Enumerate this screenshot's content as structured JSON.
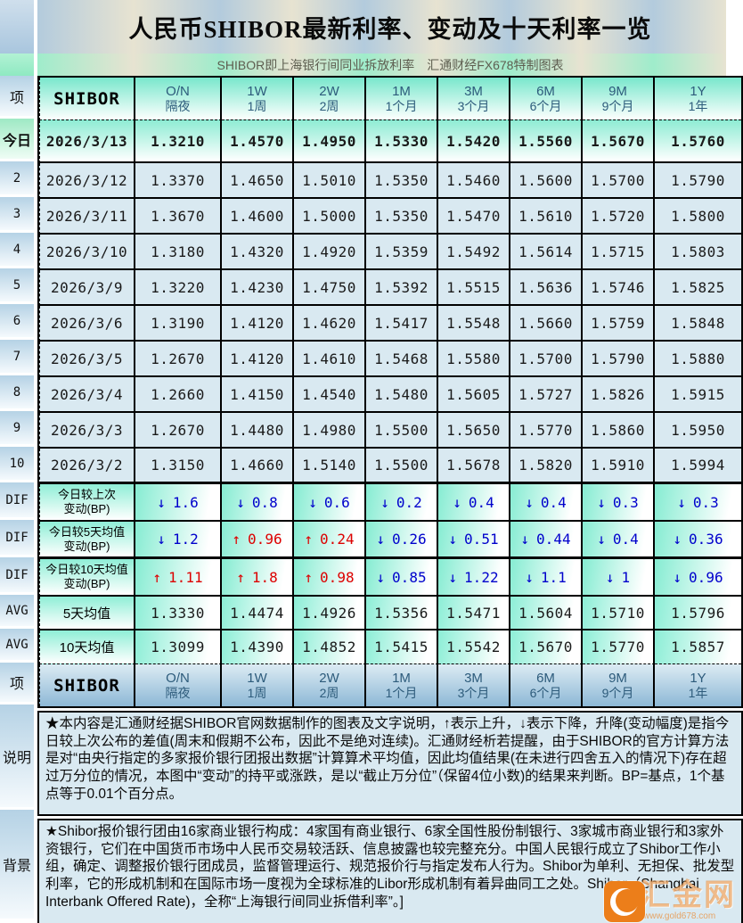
{
  "title": "人民币SHIBOR最新利率、变动及十天利率一览",
  "subtitle": "SHIBOR即上海银行间同业拆放利率　汇通财经FX678特制图表",
  "header": {
    "item_label": "项",
    "shibor_label": "SHIBOR",
    "tenors": [
      {
        "en": "O/N",
        "cn": "隔夜"
      },
      {
        "en": "1W",
        "cn": "1周"
      },
      {
        "en": "2W",
        "cn": "2周"
      },
      {
        "en": "1M",
        "cn": "1个月"
      },
      {
        "en": "3M",
        "cn": "3个月"
      },
      {
        "en": "6M",
        "cn": "6个月"
      },
      {
        "en": "9M",
        "cn": "9个月"
      },
      {
        "en": "1Y",
        "cn": "1年"
      }
    ]
  },
  "left_strip": [
    {
      "label": "项",
      "type": "hdr"
    },
    {
      "label": "今日",
      "type": "today"
    },
    {
      "label": "2",
      "type": "row"
    },
    {
      "label": "3",
      "type": "row"
    },
    {
      "label": "4",
      "type": "row"
    },
    {
      "label": "5",
      "type": "row"
    },
    {
      "label": "6",
      "type": "row"
    },
    {
      "label": "7",
      "type": "row"
    },
    {
      "label": "8",
      "type": "row"
    },
    {
      "label": "9",
      "type": "row"
    },
    {
      "label": "10",
      "type": "row"
    },
    {
      "label": "DIF",
      "type": "dif"
    },
    {
      "label": "DIF",
      "type": "dif"
    },
    {
      "label": "DIF",
      "type": "dif"
    },
    {
      "label": "AVG",
      "type": "avg"
    },
    {
      "label": "AVG",
      "type": "avg"
    },
    {
      "label": "项",
      "type": "hdr2"
    },
    {
      "label": "说明",
      "type": "note"
    },
    {
      "label": "背景",
      "type": "bg"
    }
  ],
  "chart_data": {
    "type": "table",
    "title": "人民币SHIBOR最新利率、变动及十天利率一览",
    "columns": [
      "SHIBOR",
      "O/N 隔夜",
      "1W 1周",
      "2W 2周",
      "1M 1个月",
      "3M 3个月",
      "6M 6个月",
      "9M 9个月",
      "1Y 1年"
    ],
    "rows": [
      {
        "label": "今日",
        "date": "2026/3/13",
        "values": [
          "1.3210",
          "1.4570",
          "1.4950",
          "1.5330",
          "1.5420",
          "1.5560",
          "1.5670",
          "1.5760"
        ]
      },
      {
        "label": "2",
        "date": "2026/3/12",
        "values": [
          "1.3370",
          "1.4650",
          "1.5010",
          "1.5350",
          "1.5460",
          "1.5600",
          "1.5700",
          "1.5790"
        ]
      },
      {
        "label": "3",
        "date": "2026/3/11",
        "values": [
          "1.3670",
          "1.4600",
          "1.5000",
          "1.5350",
          "1.5470",
          "1.5610",
          "1.5720",
          "1.5800"
        ]
      },
      {
        "label": "4",
        "date": "2026/3/10",
        "values": [
          "1.3180",
          "1.4320",
          "1.4920",
          "1.5359",
          "1.5492",
          "1.5614",
          "1.5715",
          "1.5803"
        ]
      },
      {
        "label": "5",
        "date": "2026/3/9",
        "values": [
          "1.3220",
          "1.4230",
          "1.4750",
          "1.5392",
          "1.5515",
          "1.5636",
          "1.5746",
          "1.5825"
        ]
      },
      {
        "label": "6",
        "date": "2026/3/6",
        "values": [
          "1.3190",
          "1.4120",
          "1.4620",
          "1.5417",
          "1.5548",
          "1.5660",
          "1.5759",
          "1.5848"
        ]
      },
      {
        "label": "7",
        "date": "2026/3/5",
        "values": [
          "1.2670",
          "1.4120",
          "1.4610",
          "1.5468",
          "1.5580",
          "1.5700",
          "1.5790",
          "1.5880"
        ]
      },
      {
        "label": "8",
        "date": "2026/3/4",
        "values": [
          "1.2660",
          "1.4150",
          "1.4540",
          "1.5480",
          "1.5605",
          "1.5727",
          "1.5826",
          "1.5915"
        ]
      },
      {
        "label": "9",
        "date": "2026/3/3",
        "values": [
          "1.2670",
          "1.4480",
          "1.4980",
          "1.5500",
          "1.5650",
          "1.5770",
          "1.5860",
          "1.5950"
        ]
      },
      {
        "label": "10",
        "date": "2026/3/2",
        "values": [
          "1.3150",
          "1.4660",
          "1.5140",
          "1.5500",
          "1.5678",
          "1.5820",
          "1.5910",
          "1.5994"
        ]
      }
    ],
    "dif_rows": [
      {
        "label": "DIF",
        "name_lines": [
          "今日较上次",
          "变动(BP)"
        ],
        "cells": [
          {
            "dir": "down",
            "value": "1.6"
          },
          {
            "dir": "down",
            "value": "0.8"
          },
          {
            "dir": "down",
            "value": "0.6"
          },
          {
            "dir": "down",
            "value": "0.2"
          },
          {
            "dir": "down",
            "value": "0.4"
          },
          {
            "dir": "down",
            "value": "0.4"
          },
          {
            "dir": "down",
            "value": "0.3"
          },
          {
            "dir": "down",
            "value": "0.3"
          }
        ]
      },
      {
        "label": "DIF",
        "name_lines": [
          "今日较5天均值",
          "变动(BP)"
        ],
        "cells": [
          {
            "dir": "down",
            "value": "1.2"
          },
          {
            "dir": "up",
            "value": "0.96"
          },
          {
            "dir": "up",
            "value": "0.24"
          },
          {
            "dir": "down",
            "value": "0.26"
          },
          {
            "dir": "down",
            "value": "0.51"
          },
          {
            "dir": "down",
            "value": "0.44"
          },
          {
            "dir": "down",
            "value": "0.4"
          },
          {
            "dir": "down",
            "value": "0.36"
          }
        ]
      },
      {
        "label": "DIF",
        "name_lines": [
          "今日较10天均值",
          "变动(BP)"
        ],
        "cells": [
          {
            "dir": "up",
            "value": "1.11"
          },
          {
            "dir": "up",
            "value": "1.8"
          },
          {
            "dir": "up",
            "value": "0.98"
          },
          {
            "dir": "down",
            "value": "0.85"
          },
          {
            "dir": "down",
            "value": "1.22"
          },
          {
            "dir": "down",
            "value": "1.1"
          },
          {
            "dir": "down",
            "value": "1"
          },
          {
            "dir": "down",
            "value": "0.96"
          }
        ]
      }
    ],
    "avg_rows": [
      {
        "label": "AVG",
        "name": "5天均值",
        "values": [
          "1.3330",
          "1.4474",
          "1.4926",
          "1.5356",
          "1.5471",
          "1.5604",
          "1.5710",
          "1.5796"
        ]
      },
      {
        "label": "AVG",
        "name": "10天均值",
        "values": [
          "1.3099",
          "1.4390",
          "1.4852",
          "1.5415",
          "1.5542",
          "1.5670",
          "1.5770",
          "1.5857"
        ]
      }
    ]
  },
  "glyphs": {
    "up": "↑",
    "down": "↓"
  },
  "notes": {
    "label": "说明",
    "text": "★本内容是汇通财经据SHIBOR官网数据制作的图表及文字说明，↑表示上升，↓表示下降，升降(变动幅度)是指今日较上次公布的差值(周末和假期不公布，因此不是绝对连续)。汇通财经析若提醒，由于SHIBOR的官方计算方法是对“由央行指定的多家报价银行团报出数据”计算算术平均值，因此均值结果(在未进行四舍五入的情况下)存在超过万分位的情况，本图中“变动”的持平或涨跌，是以“截止万分位”（保留4位小数)的结果来判断。BP=基点，1个基点等于0.01个百分点。"
  },
  "background": {
    "label": "背景",
    "text": "★Shibor报价银行团由16家商业银行构成：4家国有商业银行、6家全国性股份制银行、3家城市商业银行和3家外资银行，它们在中国货币市场中人民币交易较活跃、信息披露也较完整充分。中国人民银行成立了Shibor工作小组，确定、调整报价银行团成员，监督管理运行、规范报价行与指定发布人行为。Shibor为单利、无担保、批发型利率，它的形成机制和在国际市场一度视为全球标准的Libor形成机制有着异曲同工之处。Shibor（Shanghai Interbank Offered Rate)，全称“上海银行间同业拆借利率”。]"
  },
  "watermark": {
    "brand": "汇金网",
    "url": "www.gold678.com"
  },
  "colors": {
    "up_red": "#dd0000",
    "down_blue": "#0000cc",
    "watermark_orange": "#ec7e1a",
    "data_row_bg": "#d9e9f1",
    "header_aqua": "#79e7cc",
    "bottom_header_blue": "#8db8d6",
    "stripe_blue": "#b3cbdd",
    "stripe_cream": "#e7e3d1",
    "stripe_aqua": "#9feccb"
  }
}
